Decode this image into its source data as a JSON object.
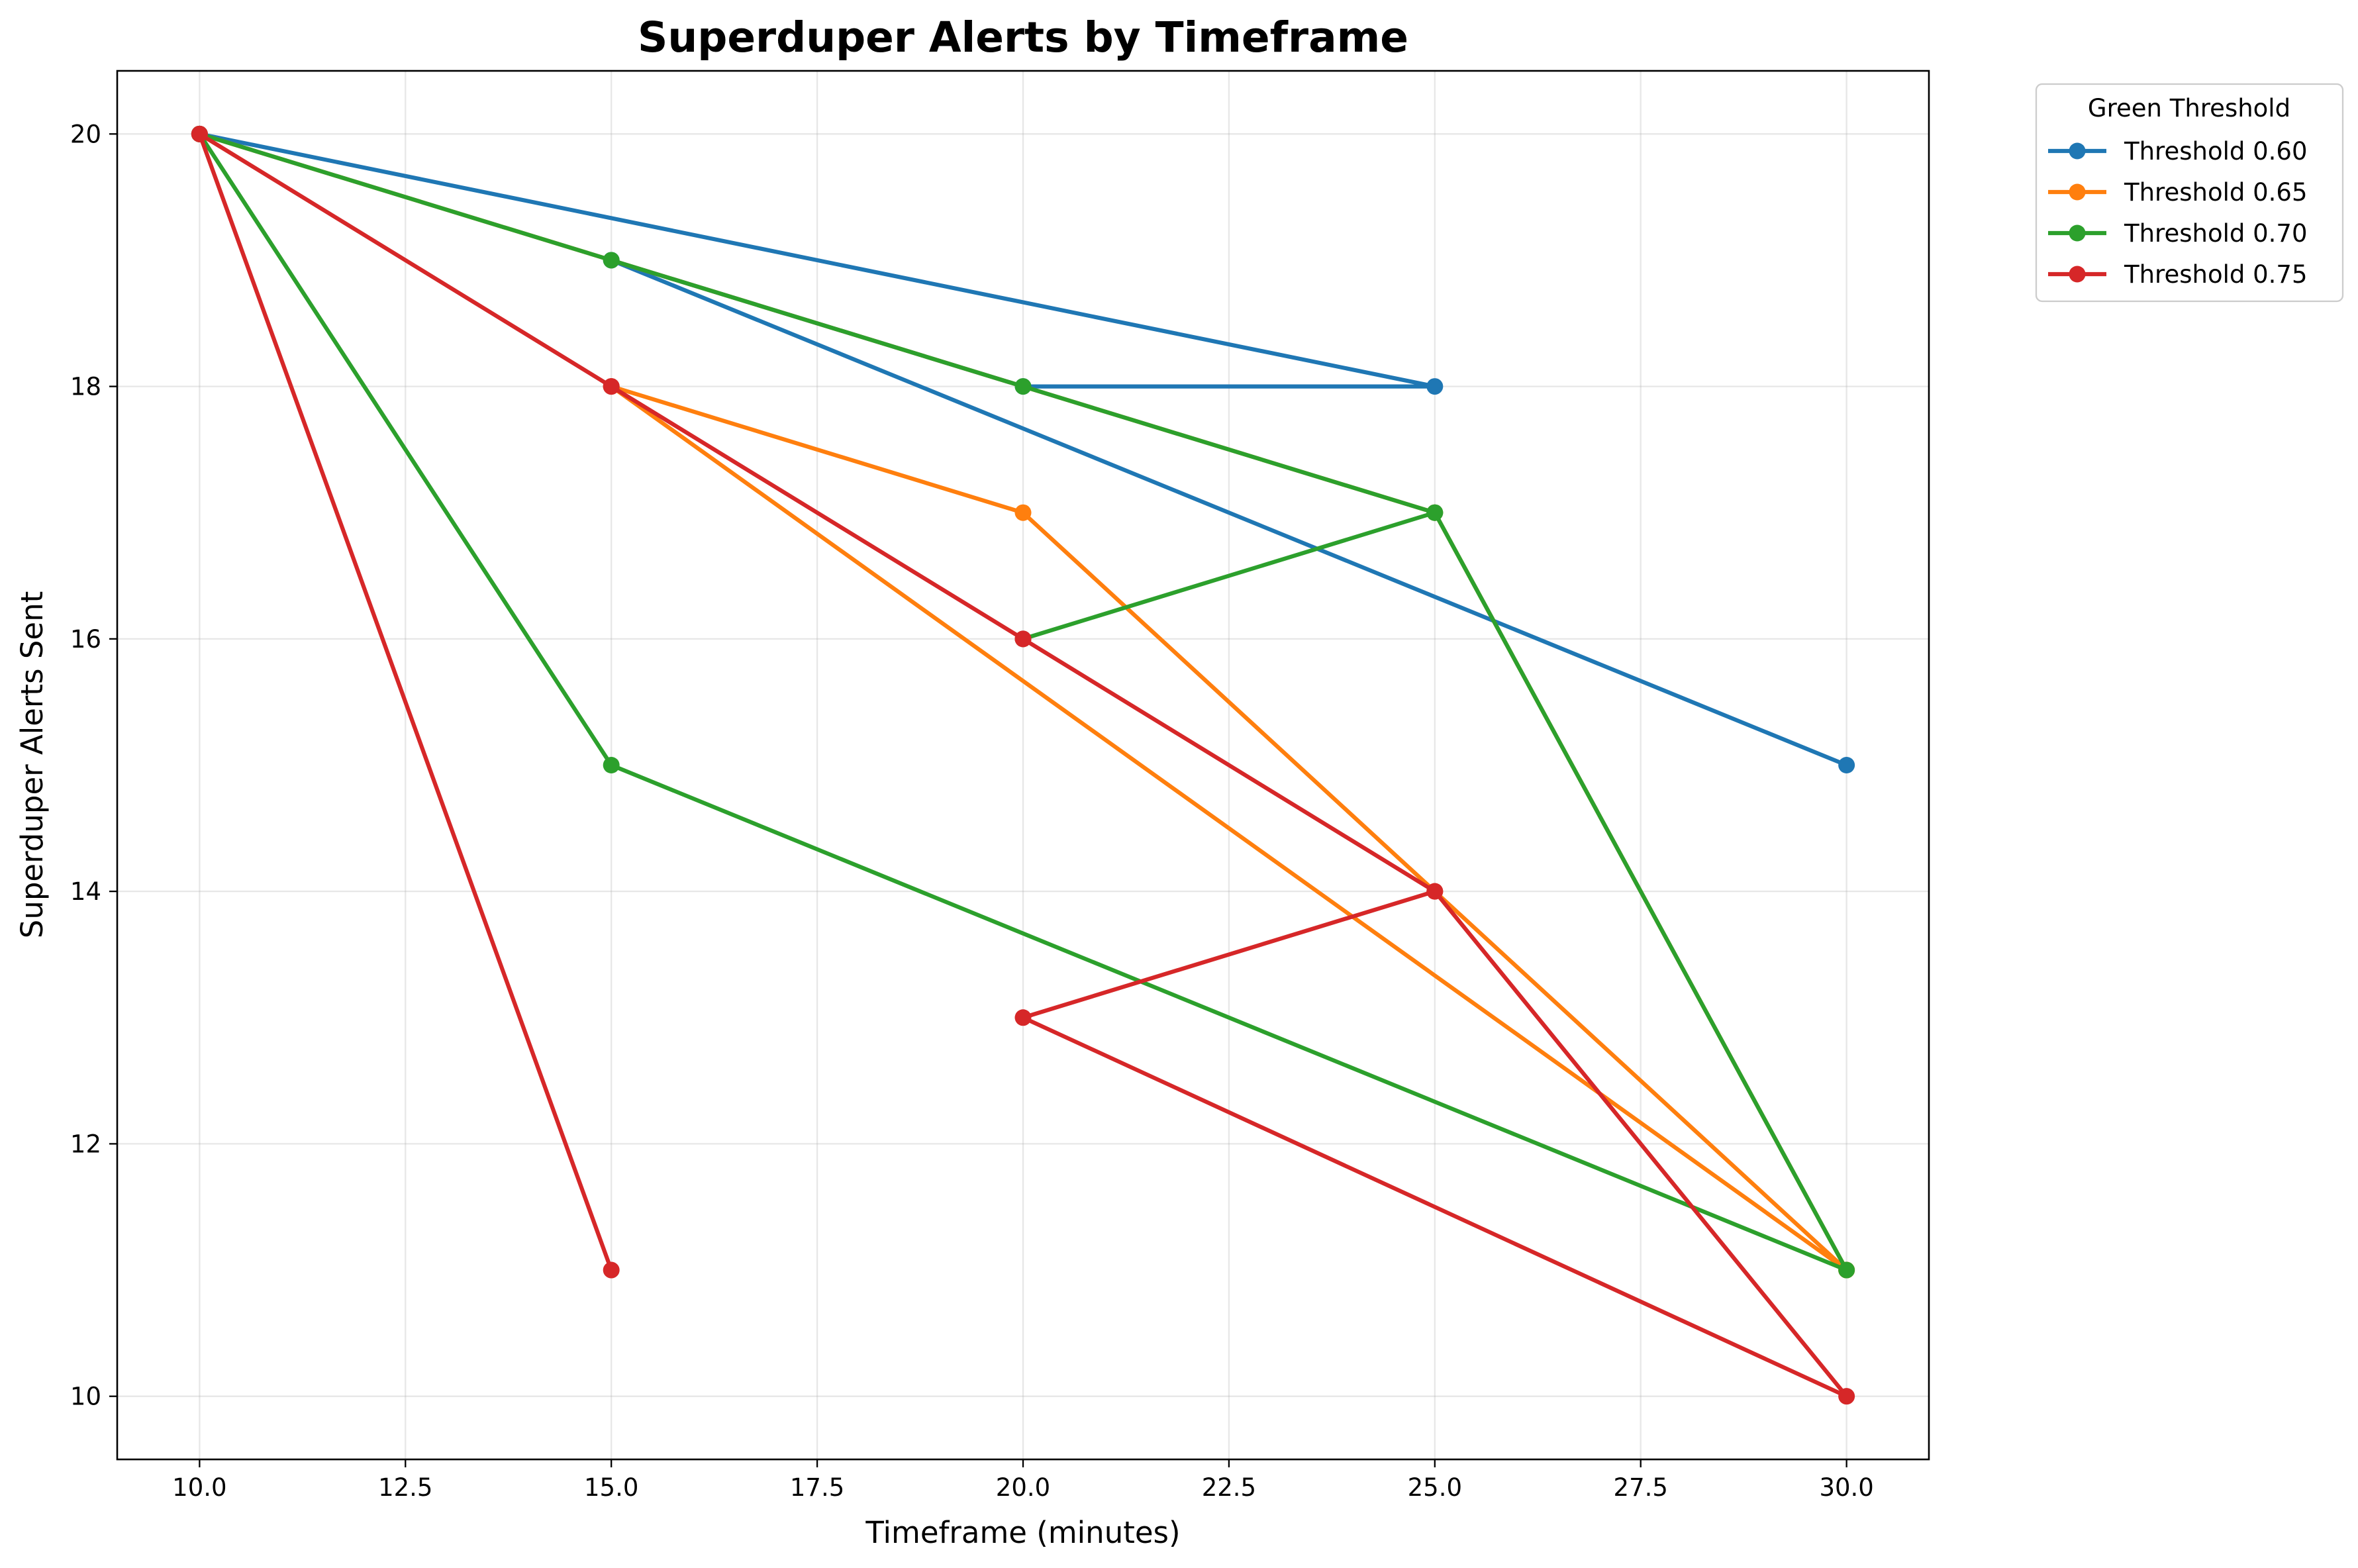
{
  "chart_data": {
    "type": "line",
    "title": "Superduper Alerts by Timeframe",
    "xlabel": "Timeframe (minutes)",
    "ylabel": "Superduper Alerts Sent",
    "xlim": [
      9.0,
      31.0
    ],
    "ylim": [
      9.5,
      20.5
    ],
    "x_ticks": [
      10.0,
      12.5,
      15.0,
      17.5,
      20.0,
      22.5,
      25.0,
      27.5,
      30.0
    ],
    "x_tick_labels": [
      "10.0",
      "12.5",
      "15.0",
      "17.5",
      "20.0",
      "22.5",
      "25.0",
      "27.5",
      "30.0"
    ],
    "y_ticks": [
      10,
      12,
      14,
      16,
      18,
      20
    ],
    "y_tick_labels": [
      "10",
      "12",
      "14",
      "16",
      "18",
      "20"
    ],
    "grid": true,
    "legend": {
      "title": "Green Threshold",
      "placement": "outside-top-right"
    },
    "series": [
      {
        "name": "Threshold 0.60",
        "color": "#1f77b4",
        "points": [
          [
            10,
            20
          ],
          [
            25,
            18
          ],
          [
            20,
            18
          ],
          [
            15,
            19
          ],
          [
            30,
            15
          ]
        ]
      },
      {
        "name": "Threshold 0.65",
        "color": "#ff7f0e",
        "points": [
          [
            10,
            20
          ],
          [
            25,
            17
          ],
          [
            30,
            11
          ],
          [
            15,
            18
          ],
          [
            20,
            17
          ],
          [
            25,
            14
          ],
          [
            30,
            11
          ]
        ]
      },
      {
        "name": "Threshold 0.70",
        "color": "#2ca02c",
        "points": [
          [
            10,
            20
          ],
          [
            15,
            19
          ],
          [
            20,
            18
          ],
          [
            25,
            17
          ],
          [
            20,
            16
          ],
          [
            25,
            17
          ],
          [
            30,
            11
          ],
          [
            15,
            15
          ],
          [
            10,
            20
          ]
        ]
      },
      {
        "name": "Threshold 0.75",
        "color": "#d62728",
        "points": [
          [
            10,
            20
          ],
          [
            15,
            18
          ],
          [
            20,
            16
          ],
          [
            25,
            14
          ],
          [
            20,
            13
          ],
          [
            30,
            10
          ],
          [
            25,
            14
          ],
          [
            20,
            16
          ],
          [
            15,
            18
          ],
          [
            10,
            20
          ],
          [
            15,
            11
          ]
        ]
      }
    ]
  }
}
